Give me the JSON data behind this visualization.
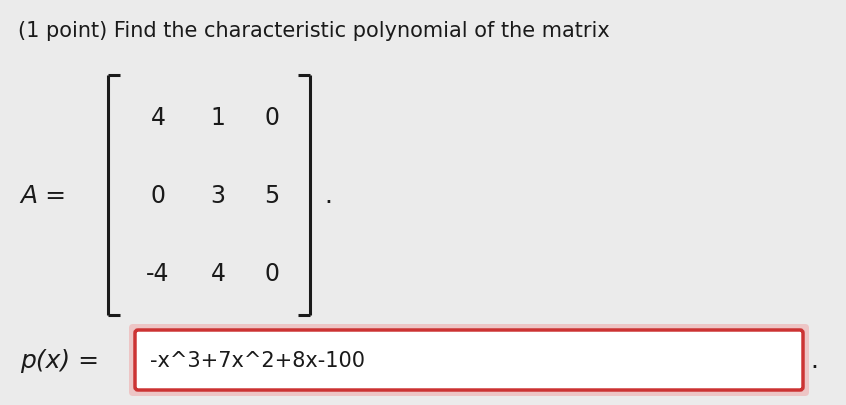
{
  "title": "(1 point) Find the characteristic polynomial of the matrix",
  "matrix": [
    [
      "4",
      "1",
      "0"
    ],
    [
      "0",
      "3",
      "5"
    ],
    [
      "-4",
      "4",
      "0"
    ]
  ],
  "A_label": "A =",
  "p_label": "p(x) =",
  "answer": "-x^3+7x^2+8x-100",
  "bg_color": "#ebebeb",
  "box_bg": "#ffffff",
  "box_border": "#cc3333",
  "text_color": "#1a1a1a",
  "title_fontsize": 15,
  "matrix_fontsize": 17,
  "label_fontsize": 18,
  "answer_fontsize": 15,
  "period_fontsize": 18
}
